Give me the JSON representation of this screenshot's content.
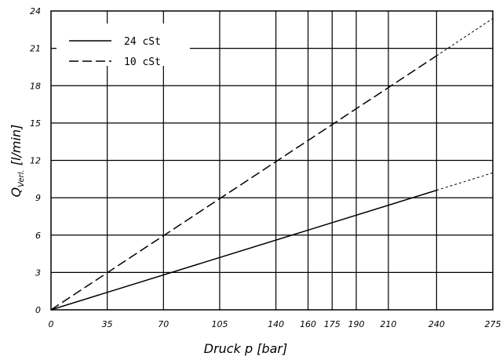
{
  "chart_data": {
    "type": "line",
    "xlabel": "Druck p [bar]",
    "ylabel_main": "Q",
    "ylabel_sub": "Verl.",
    "ylabel_unit": " [l/min]",
    "xlim": [
      0,
      275
    ],
    "ylim": [
      0,
      24
    ],
    "x_ticks": [
      0,
      35,
      70,
      105,
      140,
      160,
      175,
      190,
      210,
      240,
      275
    ],
    "y_ticks": [
      0,
      3,
      6,
      9,
      12,
      15,
      18,
      21,
      24
    ],
    "grid": true,
    "legend_position": "top-left",
    "series": [
      {
        "name": "24 cSt",
        "dash": "solid",
        "points": [
          [
            0,
            0
          ],
          [
            240,
            9.6
          ]
        ],
        "extrapolated": [
          [
            240,
            9.6
          ],
          [
            275,
            11.0
          ]
        ]
      },
      {
        "name": "10 cSt",
        "dash": "dashed",
        "points": [
          [
            0,
            0
          ],
          [
            240,
            20.4
          ]
        ],
        "extrapolated": [
          [
            240,
            20.4
          ],
          [
            275,
            23.4
          ]
        ]
      }
    ]
  }
}
